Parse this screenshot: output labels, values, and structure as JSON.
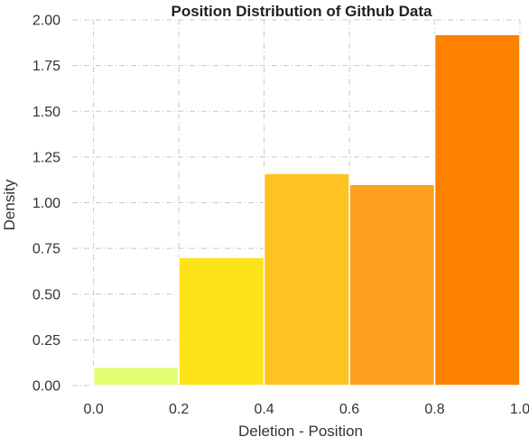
{
  "chart_data": {
    "type": "bar",
    "title": "Position Distribution of Github Data",
    "xlabel": "Deletion - Position",
    "ylabel": "Density",
    "xlim": [
      -0.05,
      1.0
    ],
    "ylim": [
      0,
      2.0
    ],
    "grid": true,
    "bins": [
      {
        "x0": 0.0,
        "x1": 0.2,
        "value": 0.1,
        "color": "#e2ff73"
      },
      {
        "x0": 0.2,
        "x1": 0.4,
        "value": 0.7,
        "color": "#fde31a"
      },
      {
        "x0": 0.4,
        "x1": 0.6,
        "value": 1.16,
        "color": "#fdc320"
      },
      {
        "x0": 0.6,
        "x1": 0.8,
        "value": 1.1,
        "color": "#fda11f"
      },
      {
        "x0": 0.8,
        "x1": 1.0,
        "value": 1.92,
        "color": "#fd8200"
      }
    ],
    "xticks": [
      {
        "value": 0.0,
        "label": "0.0"
      },
      {
        "value": 0.2,
        "label": "0.2"
      },
      {
        "value": 0.4,
        "label": "0.4"
      },
      {
        "value": 0.6,
        "label": "0.6"
      },
      {
        "value": 0.8,
        "label": "0.8"
      },
      {
        "value": 1.0,
        "label": "1.0"
      }
    ],
    "yticks": [
      {
        "value": 0.0,
        "label": "0.00"
      },
      {
        "value": 0.25,
        "label": "0.25"
      },
      {
        "value": 0.5,
        "label": "0.50"
      },
      {
        "value": 0.75,
        "label": "0.75"
      },
      {
        "value": 1.0,
        "label": "1.00"
      },
      {
        "value": 1.25,
        "label": "1.25"
      },
      {
        "value": 1.5,
        "label": "1.50"
      },
      {
        "value": 1.75,
        "label": "1.75"
      },
      {
        "value": 2.0,
        "label": "2.00"
      }
    ]
  }
}
